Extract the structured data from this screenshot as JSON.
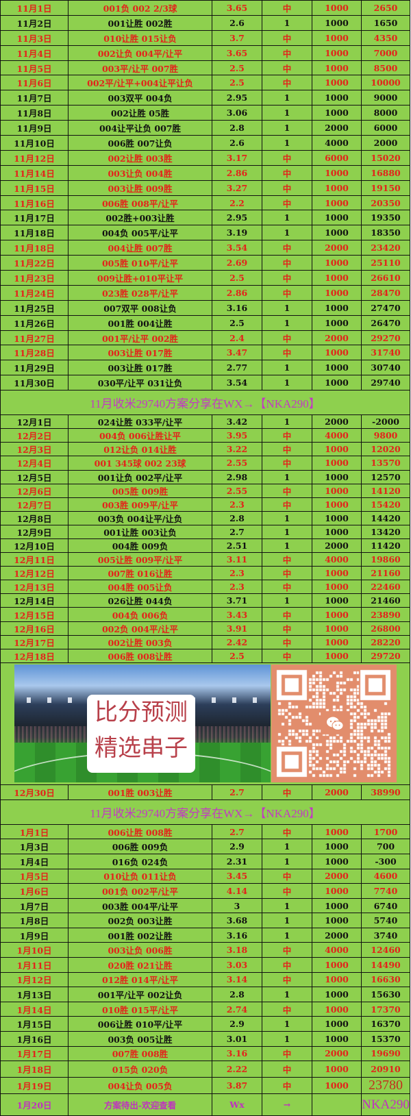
{
  "colors": {
    "background": "#8ed04e",
    "hit_text": "#e3231a",
    "miss_text": "#111111",
    "banner_text": "#c23ac2",
    "qr_background": "#e28d6c"
  },
  "banner_text": "11月收米29740方案分享在WX→【NKA290】",
  "promo": {
    "line1": "比分预测",
    "line2": "精选串子",
    "qr_icon": "wechat-icon"
  },
  "november": [
    [
      "11月1日",
      "001负 002 2/3球",
      "3.65",
      "中",
      "1000",
      "2650",
      true
    ],
    [
      "11月2日",
      "001让胜 002胜",
      "2.6",
      "1",
      "1000",
      "1650",
      false
    ],
    [
      "11月3日",
      "010让胜 015让负",
      "3.7",
      "中",
      "1000",
      "4350",
      true
    ],
    [
      "11月4日",
      "002让负 004平/让平",
      "3.65",
      "中",
      "1000",
      "7000",
      true
    ],
    [
      "11月5日",
      "003平/让平 007胜",
      "2.5",
      "中",
      "1000",
      "8500",
      true
    ],
    [
      "11月6日",
      "002平/让平+004让平让负",
      "2.5",
      "中",
      "1000",
      "10000",
      true
    ],
    [
      "11月7日",
      "003双平 004负",
      "2.95",
      "1",
      "1000",
      "9000",
      false
    ],
    [
      "11月8日",
      "002让胜 05胜",
      "3.06",
      "1",
      "1000",
      "8000",
      false
    ],
    [
      "11月9日",
      "004让平让负 007胜",
      "2.8",
      "1",
      "2000",
      "6000",
      false
    ],
    [
      "11月10日",
      "006胜 007让负",
      "2.6",
      "1",
      "4000",
      "2000",
      false
    ],
    [
      "11月12日",
      "002让胜 003胜",
      "3.17",
      "中",
      "6000",
      "15020",
      true
    ],
    [
      "11月14日",
      "003让负 004胜",
      "2.86",
      "中",
      "1000",
      "16880",
      true
    ],
    [
      "11月15日",
      "003让胜 009胜",
      "3.27",
      "中",
      "1000",
      "19150",
      true
    ],
    [
      "11月16日",
      "006胜 008平/让平",
      "2.2",
      "中",
      "1000",
      "20350",
      true
    ],
    [
      "11月17日",
      "002胜+003让胜",
      "2.95",
      "1",
      "1000",
      "19350",
      false
    ],
    [
      "11月18日",
      "004负 005平/让平",
      "3.19",
      "1",
      "1000",
      "18350",
      false
    ],
    [
      "11月18日",
      "004让胜 007胜",
      "3.54",
      "中",
      "2000",
      "23420",
      true
    ],
    [
      "11月22日",
      "005胜 010平/让平",
      "2.69",
      "中",
      "1000",
      "25110",
      true
    ],
    [
      "11月23日",
      "009让胜+010平让平",
      "2.5",
      "中",
      "1000",
      "26610",
      true
    ],
    [
      "11月24日",
      "023胜 028平/让平",
      "2.86",
      "中",
      "1000",
      "28470",
      true
    ],
    [
      "11月25日",
      "007双平 008让负",
      "3.16",
      "1",
      "1000",
      "27470",
      false
    ],
    [
      "11月26日",
      "001胜 004让胜",
      "2.5",
      "1",
      "1000",
      "26470",
      false
    ],
    [
      "11月27日",
      "001平/让平 002胜",
      "2.4",
      "中",
      "2000",
      "29270",
      true
    ],
    [
      "11月28日",
      "003让胜 017胜",
      "3.47",
      "中",
      "1000",
      "31740",
      true
    ],
    [
      "11月29日",
      "003让胜 017胜",
      "2.77",
      "1",
      "1000",
      "30740",
      false
    ],
    [
      "11月30日",
      "030平/让平 031让负",
      "3.54",
      "1",
      "1000",
      "29740",
      false
    ]
  ],
  "december": [
    [
      "12月1日",
      "024让胜 033平/让平",
      "3.42",
      "1",
      "2000",
      "-2000",
      false
    ],
    [
      "12月2日",
      "004负 006让胜让平",
      "3.95",
      "中",
      "4000",
      "9800",
      true
    ],
    [
      "12月3日",
      "012让负 014让胜",
      "3.22",
      "中",
      "1000",
      "12020",
      true
    ],
    [
      "12月4日",
      "001 345球 002 23球",
      "2.55",
      "中",
      "1000",
      "13570",
      true
    ],
    [
      "12月5日",
      "001让负 002平/让平",
      "2.98",
      "1",
      "1000",
      "12570",
      false
    ],
    [
      "12月6日",
      "005胜 009胜",
      "2.55",
      "中",
      "1000",
      "14120",
      true
    ],
    [
      "12月7日",
      "003胜 009平/让平",
      "2.3",
      "中",
      "1000",
      "15420",
      true
    ],
    [
      "12月8日",
      "003负 004让平/让负",
      "2.8",
      "1",
      "1000",
      "14420",
      false
    ],
    [
      "12月9日",
      "001让胜 003让负",
      "2.7",
      "1",
      "1000",
      "13420",
      false
    ],
    [
      "12月10日",
      "004胜 009负",
      "2.51",
      "1",
      "2000",
      "11420",
      false
    ],
    [
      "12月11日",
      "005让胜 009平/让平",
      "3.11",
      "中",
      "4000",
      "19860",
      true
    ],
    [
      "12月12日",
      "007胜 016让胜",
      "2.3",
      "中",
      "1000",
      "21160",
      true
    ],
    [
      "12月13日",
      "004胜 005让负",
      "2.3",
      "中",
      "1000",
      "22460",
      true
    ],
    [
      "12月14日",
      "026让胜 044负",
      "3.71",
      "1",
      "1000",
      "21460",
      false
    ],
    [
      "12月15日",
      "004负 006负",
      "3.43",
      "中",
      "1000",
      "23890",
      true
    ],
    [
      "12月16日",
      "002负 004平/让平",
      "3.91",
      "中",
      "1000",
      "26800",
      true
    ],
    [
      "12月17日",
      "002让胜 003负",
      "2.42",
      "中",
      "1000",
      "28220",
      true
    ],
    [
      "12月18日",
      "006胜 008让胜",
      "2.5",
      "中",
      "1000",
      "29720",
      true
    ]
  ],
  "december_late": [
    [
      "12月30日",
      "001胜 003让胜",
      "2.7",
      "中",
      "2000",
      "38990",
      true
    ]
  ],
  "january": [
    [
      "1月1日",
      "006让胜 008胜",
      "2.7",
      "中",
      "1000",
      "1700",
      true
    ],
    [
      "1月3日",
      "006胜 009负",
      "2.9",
      "1",
      "1000",
      "700",
      false
    ],
    [
      "1月4日",
      "016负 024负",
      "2.31",
      "1",
      "1000",
      "-300",
      false
    ],
    [
      "1月5日",
      "010让负 011让负",
      "3.45",
      "中",
      "2000",
      "4600",
      true
    ],
    [
      "1月6日",
      "001负 002平/让平",
      "4.14",
      "中",
      "1000",
      "7740",
      true
    ],
    [
      "1月7日",
      "003胜 004平/让平",
      "3",
      "1",
      "1000",
      "6740",
      false
    ],
    [
      "1月8日",
      "002负 003让胜",
      "3.68",
      "1",
      "1000",
      "5740",
      false
    ],
    [
      "1月9日",
      "001胜 002让胜",
      "3.16",
      "1",
      "2000",
      "3740",
      false
    ],
    [
      "1月10日",
      "003让负 006胜",
      "3.18",
      "中",
      "4000",
      "12460",
      true
    ],
    [
      "1月11日",
      "020胜 021让胜",
      "3.03",
      "中",
      "1000",
      "14490",
      true
    ],
    [
      "1月12日",
      "012胜 014平/让平",
      "3.14",
      "中",
      "1000",
      "16630",
      true
    ],
    [
      "1月13日",
      "001平/让平 002让负",
      "2.8",
      "1",
      "1000",
      "15630",
      false
    ],
    [
      "1月14日",
      "010胜 015平/让平",
      "2.74",
      "中",
      "1000",
      "17370",
      true
    ],
    [
      "1月15日",
      "006让胜 010平/让平",
      "2.9",
      "1",
      "1000",
      "16370",
      false
    ],
    [
      "1月16日",
      "003负 005让胜",
      "3.01",
      "1",
      "1000",
      "15370",
      false
    ],
    [
      "1月17日",
      "007胜 008胜",
      "3.16",
      "中",
      "2000",
      "19690",
      true
    ],
    [
      "1月18日",
      "015负 020负",
      "2.22",
      "中",
      "1000",
      "20910",
      true
    ],
    [
      "1月19日",
      "004让负 005负",
      "3.87",
      "中",
      "1000",
      "23780",
      true
    ]
  ],
  "pending": [
    "1月20日",
    "方案待出-欢迎查看",
    "Wx",
    "→",
    "",
    "NKA290"
  ]
}
